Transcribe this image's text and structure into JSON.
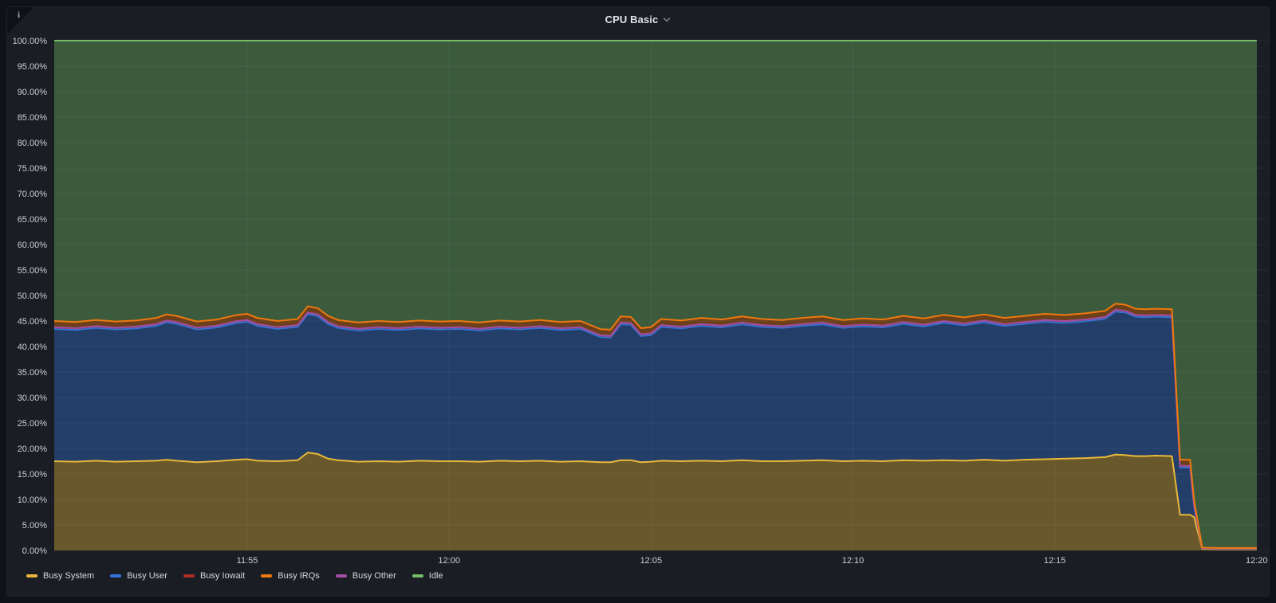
{
  "panel": {
    "title": "CPU Basic",
    "info_icon_glyph": "i"
  },
  "chart_data": {
    "type": "area",
    "title": "CPU Basic",
    "stacked": true,
    "fill_opacity": 0.38,
    "grid": true,
    "legend_position": "bottom-left",
    "colors": {
      "background": "#1A1D23",
      "page_background": "#111217",
      "grid_line": "rgba(204,212,222,0.07)",
      "tick_label": "#CCCDD2"
    },
    "y_axis": {
      "min": 0,
      "max": 100,
      "step": 5,
      "ticks": [
        "100.00%",
        "95.00%",
        "90.00%",
        "85.00%",
        "80.00%",
        "75.00%",
        "70.00%",
        "65.00%",
        "60.00%",
        "55.00%",
        "50.00%",
        "45.00%",
        "40.00%",
        "35.00%",
        "30.00%",
        "25.00%",
        "20.00%",
        "15.00%",
        "10.00%",
        "5.00%",
        "0.00%"
      ]
    },
    "x_axis": {
      "unit": "minutes_after_11:50",
      "t_start": 0.22,
      "t_end": 30.28,
      "ticks": [
        {
          "label": "11:55",
          "t": 5
        },
        {
          "label": "12:00",
          "t": 10
        },
        {
          "label": "12:05",
          "t": 15
        },
        {
          "label": "12:10",
          "t": 20
        },
        {
          "label": "12:15",
          "t": 25
        },
        {
          "label": "12:20",
          "t": 30
        }
      ]
    },
    "x": [
      0.22,
      0.75,
      1.25,
      1.75,
      2.25,
      2.75,
      3.0,
      3.25,
      3.75,
      4.25,
      4.75,
      5.0,
      5.25,
      5.75,
      6.25,
      6.5,
      6.75,
      7.0,
      7.25,
      7.75,
      8.25,
      8.75,
      9.25,
      9.75,
      10.25,
      10.75,
      11.25,
      11.75,
      12.25,
      12.75,
      13.25,
      13.75,
      14.0,
      14.25,
      14.5,
      14.75,
      15.0,
      15.25,
      15.75,
      16.25,
      16.75,
      17.25,
      17.75,
      18.25,
      18.75,
      19.25,
      19.75,
      20.25,
      20.75,
      21.25,
      21.75,
      22.25,
      22.75,
      23.25,
      23.75,
      24.25,
      24.75,
      25.25,
      25.75,
      26.25,
      26.5,
      26.75,
      27.0,
      27.25,
      27.5,
      27.9,
      28.1,
      28.35,
      28.45,
      28.65,
      29.0,
      29.5,
      30.0
    ],
    "stack_order": [
      "busy_system",
      "busy_user",
      "busy_iowait",
      "busy_other",
      "busy_irqs"
    ],
    "series": [
      {
        "id": "busy_system",
        "name": "Busy System",
        "color": "#EAB839",
        "values": [
          17.5,
          17.4,
          17.6,
          17.4,
          17.5,
          17.6,
          17.8,
          17.6,
          17.3,
          17.5,
          17.8,
          17.9,
          17.6,
          17.5,
          17.7,
          19.2,
          18.9,
          18.0,
          17.7,
          17.4,
          17.5,
          17.4,
          17.6,
          17.5,
          17.5,
          17.4,
          17.6,
          17.5,
          17.6,
          17.4,
          17.5,
          17.3,
          17.3,
          17.7,
          17.7,
          17.3,
          17.4,
          17.6,
          17.5,
          17.6,
          17.5,
          17.7,
          17.5,
          17.5,
          17.6,
          17.7,
          17.5,
          17.6,
          17.5,
          17.7,
          17.6,
          17.7,
          17.6,
          17.8,
          17.6,
          17.8,
          17.9,
          18.0,
          18.1,
          18.3,
          18.8,
          18.7,
          18.5,
          18.5,
          18.6,
          18.5,
          7.0,
          7.0,
          6.5,
          0.3,
          0.25,
          0.25,
          0.25
        ]
      },
      {
        "id": "busy_user",
        "name": "Busy User",
        "color": "#3274D9",
        "values": [
          25.95,
          25.85,
          26.05,
          25.95,
          26.05,
          26.45,
          26.95,
          26.85,
          26.05,
          26.25,
          26.85,
          26.95,
          26.45,
          25.95,
          26.15,
          27.15,
          27.05,
          26.45,
          25.95,
          25.75,
          25.95,
          25.85,
          25.95,
          25.85,
          25.95,
          25.75,
          25.95,
          25.85,
          26.05,
          25.85,
          25.95,
          24.55,
          24.45,
          26.65,
          26.55,
          24.75,
          24.85,
          26.25,
          26.05,
          26.45,
          26.25,
          26.65,
          26.35,
          26.15,
          26.45,
          26.65,
          26.15,
          26.35,
          26.25,
          26.75,
          26.35,
          26.95,
          26.55,
          26.95,
          26.45,
          26.65,
          26.95,
          26.65,
          26.85,
          27.15,
          28.05,
          27.95,
          27.35,
          27.25,
          27.25,
          27.25,
          9.25,
          9.25,
          1.95,
          0.1,
          0.08,
          0.08,
          0.08
        ]
      },
      {
        "id": "busy_iowait",
        "name": "Busy Iowait",
        "color": "#B02E24",
        "values_rle": [
          [
            69,
            0.3
          ],
          [
            4,
            0.05
          ]
        ]
      },
      {
        "id": "busy_irqs",
        "name": "Busy IRQs",
        "color": "#EF790D",
        "values_rle": [
          [
            68,
            1.2
          ],
          [
            1,
            1.0
          ],
          [
            1,
            0.1
          ],
          [
            3,
            0.08
          ]
        ]
      },
      {
        "id": "busy_other",
        "name": "Busy Other",
        "color": "#A04FA6",
        "values_rle": [
          [
            69,
            0.05
          ],
          [
            4,
            0.02
          ]
        ]
      },
      {
        "id": "idle",
        "name": "Idle",
        "color": "#73BF69",
        "mode": "complement_to_100"
      }
    ]
  }
}
